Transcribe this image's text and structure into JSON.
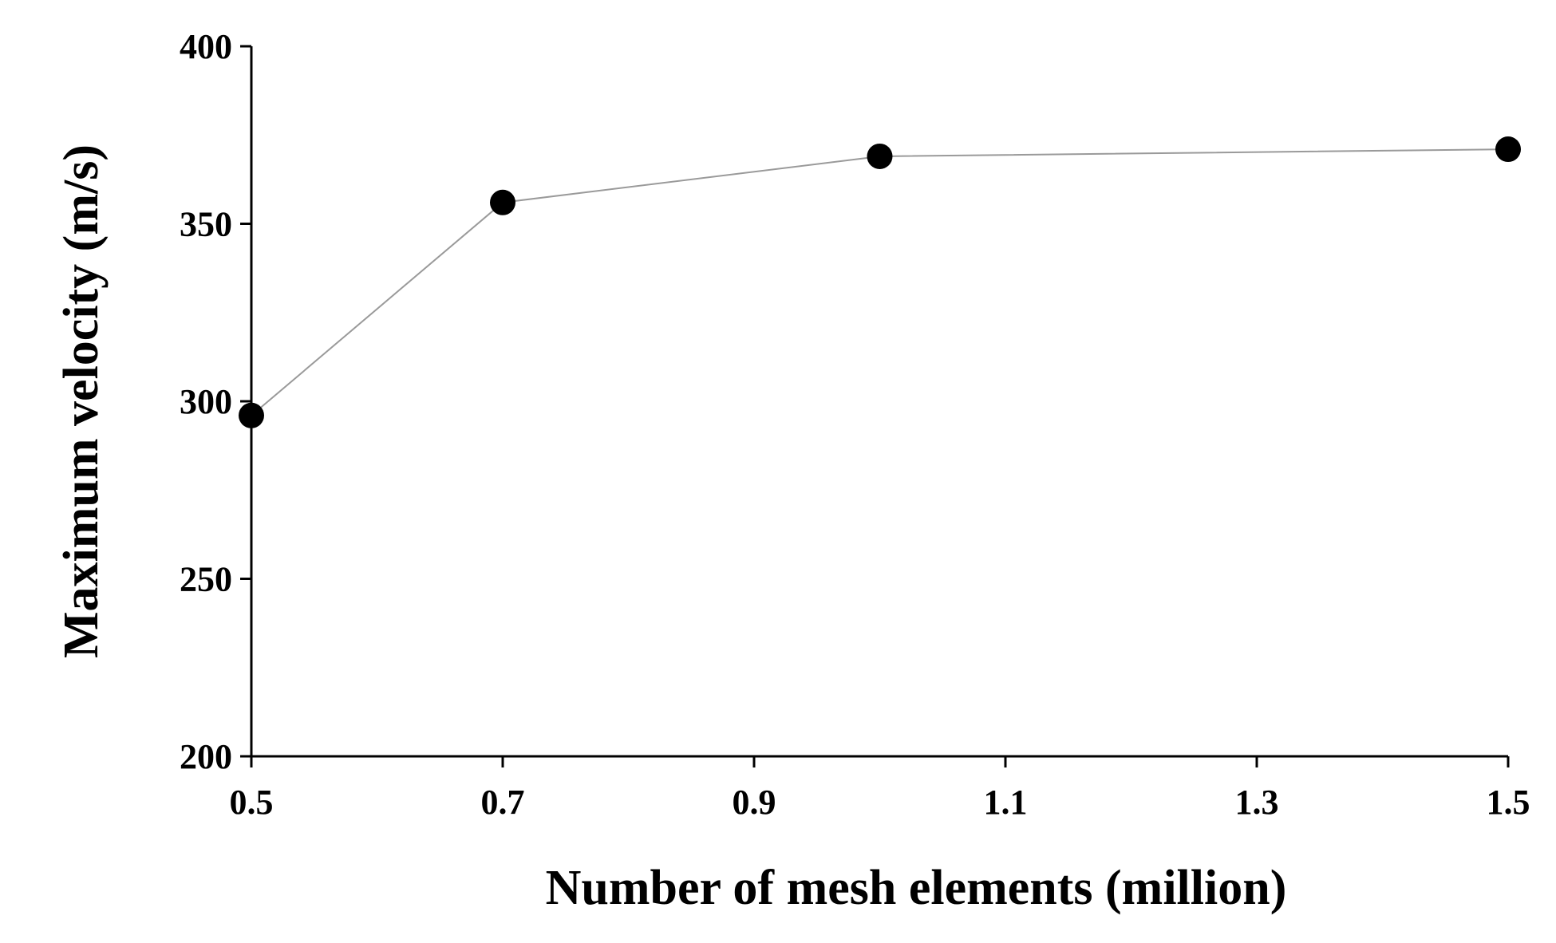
{
  "chart_data": {
    "type": "line",
    "title": "",
    "xlabel": "Number of mesh elements (million)",
    "ylabel": "Maximum velocity (m/s)",
    "xlim": [
      0.5,
      1.5
    ],
    "ylim": [
      200,
      400
    ],
    "x_ticks": [
      0.5,
      0.7,
      0.9,
      1.1,
      1.3,
      1.5
    ],
    "x_tick_labels": [
      "0.5",
      "0.7",
      "0.9",
      "1.1",
      "1.3",
      "1.5"
    ],
    "y_ticks": [
      200,
      250,
      300,
      350,
      400
    ],
    "y_tick_labels": [
      "200",
      "250",
      "300",
      "350",
      "400"
    ],
    "grid": false,
    "legend": "none",
    "series": [
      {
        "x": [
          0.5,
          0.7,
          1.0,
          1.5
        ],
        "values": [
          296,
          356,
          369,
          371
        ],
        "marker": "circle",
        "marker_color": "#000000",
        "line_color": "#9a9a9a"
      }
    ]
  }
}
